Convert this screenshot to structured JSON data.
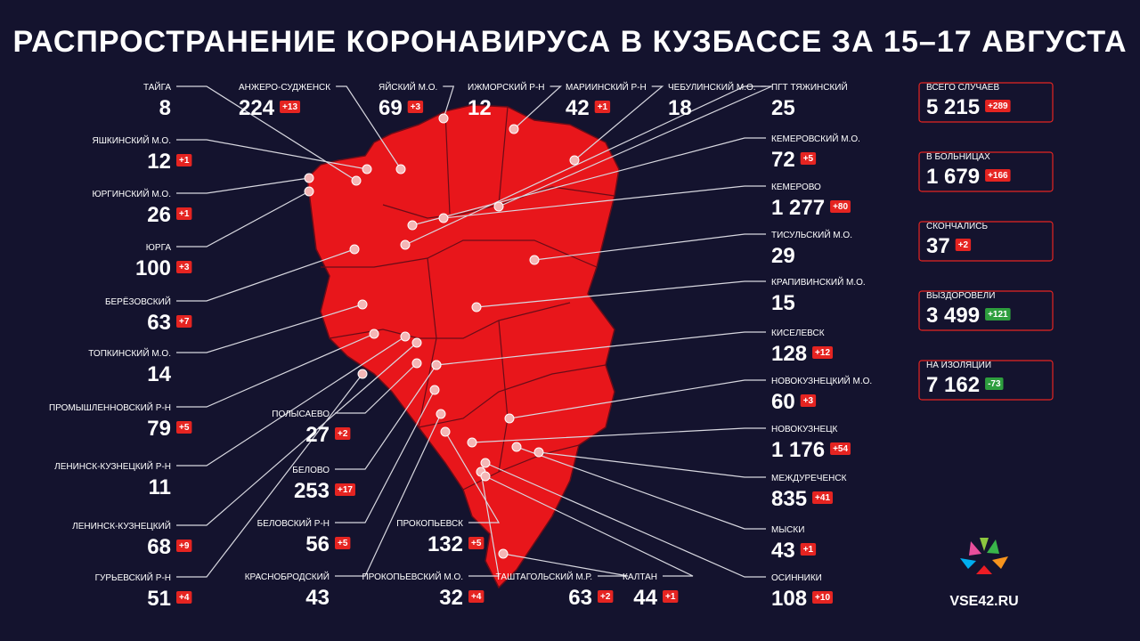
{
  "header": {
    "title": "РАСПРОСТРАНЕНИЕ КОРОНАВИРУСА В КУЗБАССЕ ЗА 15–17 АВГУСТА"
  },
  "regions": [
    {
      "name": "ТАЙГА",
      "count": "8"
    },
    {
      "name": "ЯШКИНСКИЙ М.О.",
      "count": "12",
      "delta": "+1"
    },
    {
      "name": "ЮРГИНСКИЙ М.О.",
      "count": "26",
      "delta": "+1"
    },
    {
      "name": "ЮРГА",
      "count": "100",
      "delta": "+3"
    },
    {
      "name": "БЕРЁЗОВСКИЙ",
      "count": "63",
      "delta": "+7"
    },
    {
      "name": "ТОПКИНСКИЙ М.О.",
      "count": "14"
    },
    {
      "name": "ПРОМЫШЛЕННОВСКИЙ Р-Н",
      "count": "79",
      "delta": "+5"
    },
    {
      "name": "ЛЕНИНСК-КУЗНЕЦКИЙ Р-Н",
      "count": "11"
    },
    {
      "name": "ЛЕНИНСК-КУЗНЕЦКИЙ",
      "count": "68",
      "delta": "+9"
    },
    {
      "name": "ГУРЬЕВСКИЙ Р-Н",
      "count": "51",
      "delta": "+4"
    },
    {
      "name": "АНЖЕРО-СУДЖЕНСК",
      "count": "224",
      "delta": "+13"
    },
    {
      "name": "ЯЙСКИЙ М.О.",
      "count": "69",
      "delta": "+3"
    },
    {
      "name": "ИЖМОРСКИЙ Р-Н",
      "count": "12"
    },
    {
      "name": "МАРИИНСКИЙ Р-Н",
      "count": "42",
      "delta": "+1"
    },
    {
      "name": "ЧЕБУЛИНСКИЙ М.О.",
      "count": "18"
    },
    {
      "name": "ПГТ ТЯЖИНСКИЙ",
      "count": "25"
    },
    {
      "name": "КЕМЕРОВСКИЙ М.О.",
      "count": "72",
      "delta": "+5"
    },
    {
      "name": "КЕМЕРОВО",
      "count": "1 277",
      "delta": "+80"
    },
    {
      "name": "ТИСУЛЬСКИЙ М.О.",
      "count": "29"
    },
    {
      "name": "КРАПИВИНСКИЙ М.О.",
      "count": "15"
    },
    {
      "name": "КИСЕЛЕВСК",
      "count": "128",
      "delta": "+12"
    },
    {
      "name": "НОВОКУЗНЕЦКИЙ М.О.",
      "count": "60",
      "delta": "+3"
    },
    {
      "name": "НОВОКУЗНЕЦК",
      "count": "1 176",
      "delta": "+54"
    },
    {
      "name": "МЕЖДУРЕЧЕНСК",
      "count": "835",
      "delta": "+41"
    },
    {
      "name": "МЫСКИ",
      "count": "43",
      "delta": "+1"
    },
    {
      "name": "ОСИННИКИ",
      "count": "108",
      "delta": "+10"
    },
    {
      "name": "ПОЛЫСАЕВО",
      "count": "27",
      "delta": "+2"
    },
    {
      "name": "БЕЛОВО",
      "count": "253",
      "delta": "+17"
    },
    {
      "name": "БЕЛОВСКИЙ Р-Н",
      "count": "56",
      "delta": "+5"
    },
    {
      "name": "КРАСНОБРОДСКИЙ",
      "count": "43"
    },
    {
      "name": "ПРОКОПЬЕВСК",
      "count": "132",
      "delta": "+5"
    },
    {
      "name": "ПРОКОПЬЕВСКИЙ М.О.",
      "count": "32",
      "delta": "+4"
    },
    {
      "name": "ТАШТАГОЛЬСКИЙ М.Р.",
      "count": "63",
      "delta": "+2"
    },
    {
      "name": "КАЛТАН",
      "count": "44",
      "delta": "+1"
    }
  ],
  "stats": [
    {
      "label": "ВСЕГО СЛУЧАЕВ",
      "value": "5 215",
      "delta": "+289",
      "delta_color": "#e52421"
    },
    {
      "label": "В БОЛЬНИЦАХ",
      "value": "1 679",
      "delta": "+166",
      "delta_color": "#e52421"
    },
    {
      "label": "СКОНЧАЛИСЬ",
      "value": "37",
      "delta": "+2",
      "delta_color": "#e52421"
    },
    {
      "label": "ВЫЗДОРОВЕЛИ",
      "value": "3 499",
      "delta": "+121",
      "delta_color": "#2e9e3e"
    },
    {
      "label": "НА ИЗОЛЯЦИИ",
      "value": "7 162",
      "delta": "-73",
      "delta_color": "#2e9e3e"
    }
  ],
  "logo": {
    "text": "VSE42.RU"
  }
}
